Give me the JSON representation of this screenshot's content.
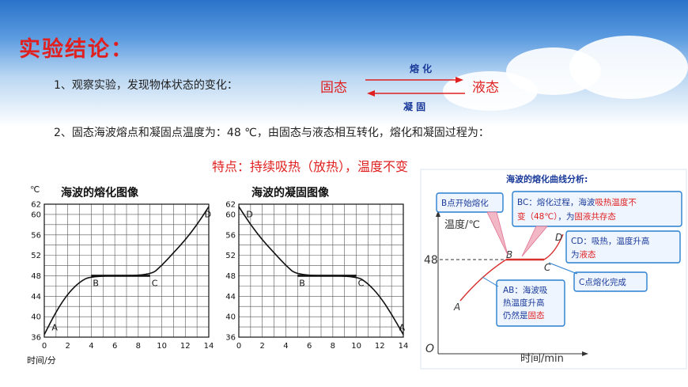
{
  "slide": {
    "title": "实验结论：",
    "line1": "1、观察实验，发现物体状态的变化：",
    "solid": "固态",
    "liquid": "液态",
    "melt": "熔 化",
    "solidify": "凝 固",
    "line2": "2、固态海波熔点和凝固点温度为：48 ℃，由固态与液态相互转化，熔化和凝固过程为：",
    "feature": "特点：持续吸热（放热），温度不变"
  },
  "chart_data": [
    {
      "type": "line",
      "title": "海波的熔化图像",
      "ylabel": "℃",
      "xlabel": "时间/分",
      "x_ticks": [
        0,
        2,
        4,
        6,
        8,
        10,
        12,
        14
      ],
      "y_ticks": [
        36,
        40,
        44,
        48,
        52,
        56,
        60,
        62
      ],
      "xlim": [
        0,
        14
      ],
      "ylim": [
        36,
        62
      ],
      "grid": true,
      "series": [
        {
          "points": [
            [
              0,
              36.5
            ],
            [
              1,
              41
            ],
            [
              2,
              44.5
            ],
            [
              3,
              46.8
            ],
            [
              4,
              48
            ],
            [
              9,
              48
            ],
            [
              10,
              50
            ],
            [
              11,
              52.5
            ],
            [
              12,
              55
            ],
            [
              13,
              58
            ],
            [
              14,
              61.5
            ]
          ]
        }
      ],
      "annotations": [
        {
          "label": "A",
          "x": 0.5,
          "y": 37
        },
        {
          "label": "B",
          "x": 4,
          "y": 48
        },
        {
          "label": "C",
          "x": 9,
          "y": 48
        },
        {
          "label": "D",
          "x": 13.5,
          "y": 61
        }
      ]
    },
    {
      "type": "line",
      "title": "海波的凝固图像",
      "x_ticks": [
        0,
        2,
        4,
        6,
        8,
        10,
        12,
        14
      ],
      "y_ticks": [
        36,
        40,
        44,
        48,
        52,
        56,
        60,
        62
      ],
      "xlim": [
        0,
        14
      ],
      "ylim": [
        36,
        62
      ],
      "grid": true,
      "series": [
        {
          "points": [
            [
              0,
              61.5
            ],
            [
              1,
              58
            ],
            [
              2,
              55
            ],
            [
              3,
              52.5
            ],
            [
              4,
              50
            ],
            [
              5,
              48
            ],
            [
              10,
              48
            ],
            [
              11,
              46.5
            ],
            [
              12,
              44
            ],
            [
              13,
              40.5
            ],
            [
              14,
              36.5
            ]
          ]
        }
      ],
      "annotations": [
        {
          "label": "D",
          "x": 0.5,
          "y": 61
        },
        {
          "label": "B",
          "x": 5,
          "y": 48
        },
        {
          "label": "C",
          "x": 10,
          "y": 48
        },
        {
          "label": "A",
          "x": 13.5,
          "y": 37
        }
      ]
    }
  ],
  "analysis": {
    "title": "海波的熔化曲线分析:",
    "b_start": "B点开始熔化",
    "bc_note1": "BC：熔化过程，海波",
    "bc_red1": "吸热温度不",
    "bc_red2": "变（48℃）",
    "bc_note2": "，为",
    "bc_red3": "固液共存态",
    "cd_note1": "CD：吸热，温度升高",
    "cd_note2": "为",
    "cd_red": "液态",
    "c_done": "C点熔化完成",
    "ab_note1": "AB：海波吸",
    "ab_note2": "热温度升高",
    "ab_note3": "仍然是",
    "ab_red": "固态",
    "ylabel": "温度/℃",
    "xlabel": "时间/min",
    "y48": "48",
    "origin": "O",
    "pA": "A",
    "pB": "B",
    "pC": "C",
    "pD": "D"
  },
  "colors": {
    "accent": "#e02020",
    "arrow": "#1a3a9a",
    "box_border": "#2a7fd0",
    "box_fill": "#eef5ff"
  }
}
